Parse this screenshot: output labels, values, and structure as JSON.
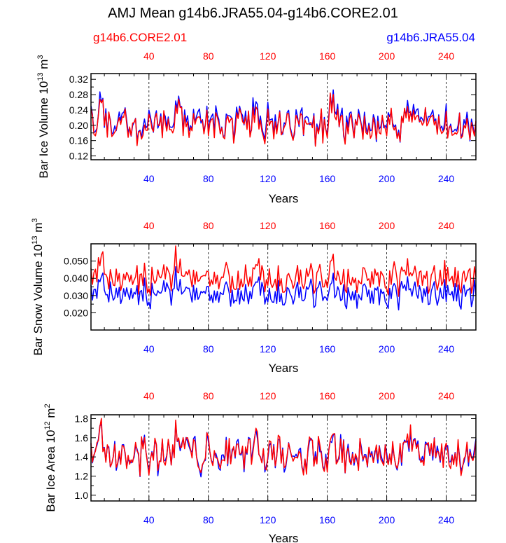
{
  "title": "AMJ Mean g14b6.JRA55.04-g14b6.CORE2.01",
  "legend": {
    "left_label": "g14b6.CORE2.01",
    "right_label": "g14b6.JRA55.04"
  },
  "colors": {
    "core": "#ff0000",
    "jra": "#0000ff",
    "axis": "#000000"
  },
  "chart_data": [
    {
      "type": "line",
      "title": "",
      "ylabel": "Bar Ice Volume 10",
      "ylabel_sup": "13",
      "ylabel_unit": " m",
      "ylabel_unit_sup": "3",
      "xlabel": "Years",
      "xlim": [
        1,
        260
      ],
      "ylim": [
        0.11,
        0.335
      ],
      "yticks": [
        0.12,
        0.16,
        0.2,
        0.24,
        0.28,
        0.32
      ],
      "ytick_labels": [
        "0.12",
        "0.16",
        "0.20",
        "0.24",
        "0.28",
        "0.32"
      ],
      "xticks": [
        40,
        80,
        120,
        160,
        200,
        240
      ],
      "xtick_labels": [
        "40",
        "80",
        "120",
        "160",
        "200",
        "240"
      ],
      "vlines": [
        40,
        80,
        120,
        160,
        200,
        240
      ],
      "series": [
        {
          "name": "g14b6.JRA55.04",
          "color": "#0000ff",
          "base": 0.205,
          "amp": 0.05,
          "bump": 0.06,
          "min": 0.115,
          "max": 0.325,
          "seed": 11
        },
        {
          "name": "g14b6.CORE2.01",
          "color": "#ff0000",
          "base": 0.198,
          "amp": 0.05,
          "bump": 0.055,
          "min": 0.115,
          "max": 0.32,
          "seed": 11
        }
      ]
    },
    {
      "type": "line",
      "title": "",
      "ylabel": "Bar Snow Volume 10",
      "ylabel_sup": "13",
      "ylabel_unit": " m",
      "ylabel_unit_sup": "3",
      "xlabel": "Years",
      "xlim": [
        1,
        260
      ],
      "ylim": [
        0.01,
        0.06
      ],
      "yticks": [
        0.02,
        0.03,
        0.04,
        0.05
      ],
      "ytick_labels": [
        "0.020",
        "0.030",
        "0.040",
        "0.050"
      ],
      "xticks": [
        40,
        80,
        120,
        160,
        200,
        240
      ],
      "xtick_labels": [
        "40",
        "80",
        "120",
        "160",
        "200",
        "240"
      ],
      "vlines": [
        40,
        80,
        120,
        160,
        200,
        240
      ],
      "series": [
        {
          "name": "g14b6.JRA55.04",
          "color": "#0000ff",
          "base": 0.031,
          "amp": 0.008,
          "bump": 0.008,
          "min": 0.011,
          "max": 0.048,
          "seed": 23
        },
        {
          "name": "g14b6.CORE2.01",
          "color": "#ff0000",
          "base": 0.04,
          "amp": 0.009,
          "bump": 0.01,
          "min": 0.018,
          "max": 0.059,
          "seed": 23
        }
      ]
    },
    {
      "type": "line",
      "title": "",
      "ylabel": "Bar Ice Area 10",
      "ylabel_sup": "12",
      "ylabel_unit": " m",
      "ylabel_unit_sup": "2",
      "xlabel": "Years",
      "xlim": [
        1,
        260
      ],
      "ylim": [
        0.94,
        1.84
      ],
      "yticks": [
        1.0,
        1.2,
        1.4,
        1.6,
        1.8
      ],
      "ytick_labels": [
        "1.0",
        "1.2",
        "1.4",
        "1.6",
        "1.8"
      ],
      "xticks": [
        40,
        80,
        120,
        160,
        200,
        240
      ],
      "xtick_labels": [
        "40",
        "80",
        "120",
        "160",
        "200",
        "240"
      ],
      "vlines": [
        40,
        80,
        120,
        160,
        200,
        240
      ],
      "series": [
        {
          "name": "g14b6.JRA55.04",
          "color": "#0000ff",
          "base": 1.42,
          "amp": 0.2,
          "bump": 0.22,
          "min": 0.97,
          "max": 1.8,
          "seed": 37
        },
        {
          "name": "g14b6.CORE2.01",
          "color": "#ff0000",
          "base": 1.42,
          "amp": 0.21,
          "bump": 0.24,
          "min": 0.95,
          "max": 1.84,
          "seed": 37
        }
      ]
    }
  ]
}
